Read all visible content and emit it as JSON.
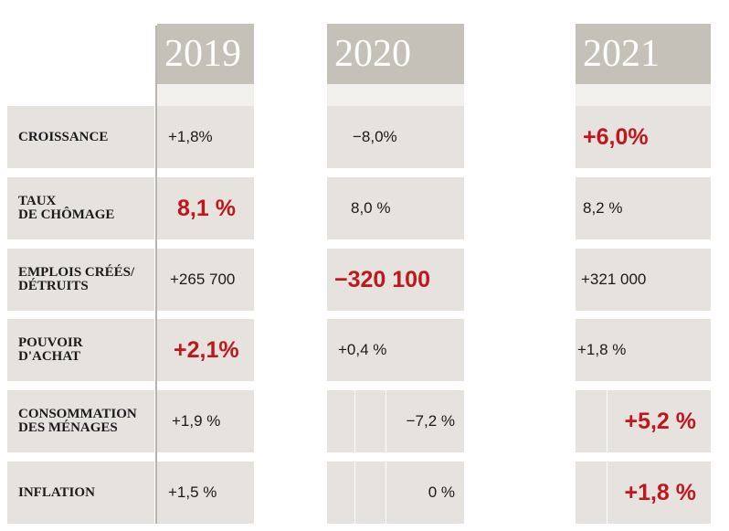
{
  "chart_data": {
    "type": "table",
    "columns": [
      "2019",
      "2020",
      "2021"
    ],
    "rows": [
      {
        "label_lines": [
          "CROISSANCE"
        ],
        "values": [
          "+1,8%",
          "−8,0%",
          "+6,0%"
        ],
        "highlight": [
          false,
          false,
          true
        ]
      },
      {
        "label_lines": [
          "TAUX",
          "DE CHÔMAGE"
        ],
        "values": [
          "8,1 %",
          "8,0 %",
          "8,2 %"
        ],
        "highlight": [
          true,
          false,
          false
        ]
      },
      {
        "label_lines": [
          "EMPLOIS CRÉÉS/",
          "DÉTRUITS"
        ],
        "values": [
          "+265 700",
          "−320 100",
          "+321 000"
        ],
        "highlight": [
          false,
          true,
          false
        ]
      },
      {
        "label_lines": [
          "POUVOIR",
          "D'ACHAT"
        ],
        "values": [
          "+2,1%",
          "+0,4 %",
          "+1,8 %"
        ],
        "highlight": [
          true,
          false,
          false
        ]
      },
      {
        "label_lines": [
          "CONSOMMATION",
          "DES MÉNAGES"
        ],
        "values": [
          "+1,9 %",
          "−7,2 %",
          "+5,2 %"
        ],
        "highlight": [
          false,
          false,
          true
        ]
      },
      {
        "label_lines": [
          "INFLATION"
        ],
        "values": [
          "+1,5 %",
          "0 %",
          "+1,8 %"
        ],
        "highlight": [
          false,
          false,
          true
        ]
      }
    ],
    "colors": {
      "header": "#c5c0b8",
      "cell": "#e6e3de",
      "highlight_text": "#c0161e",
      "text": "#1a1a1a"
    }
  }
}
